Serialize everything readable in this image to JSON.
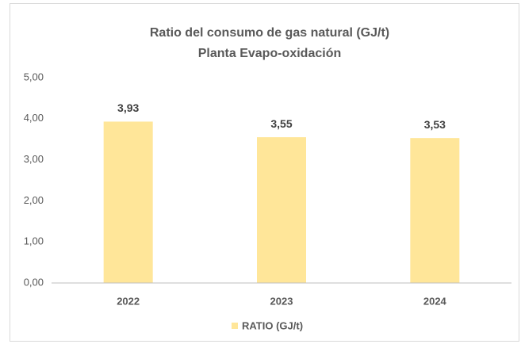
{
  "chart_data": {
    "type": "bar",
    "title": "Ratio del consumo de gas natural (GJ/t)",
    "subtitle": "Planta Evapo-oxidación",
    "categories": [
      "2022",
      "2023",
      "2024"
    ],
    "series": [
      {
        "name": "RATIO (GJ/t)",
        "color": "#ffe699",
        "values": [
          3.93,
          3.55,
          3.53
        ],
        "value_labels": [
          "3,93",
          "3,55",
          "3,53"
        ]
      }
    ],
    "ylim": [
      0,
      5
    ],
    "yticks": [
      {
        "value": 0,
        "label": "0,00"
      },
      {
        "value": 1,
        "label": "1,00"
      },
      {
        "value": 2,
        "label": "2,00"
      },
      {
        "value": 3,
        "label": "3,00"
      },
      {
        "value": 4,
        "label": "4,00"
      },
      {
        "value": 5,
        "label": "5,00"
      }
    ],
    "grid": false,
    "legend": "bottom"
  }
}
